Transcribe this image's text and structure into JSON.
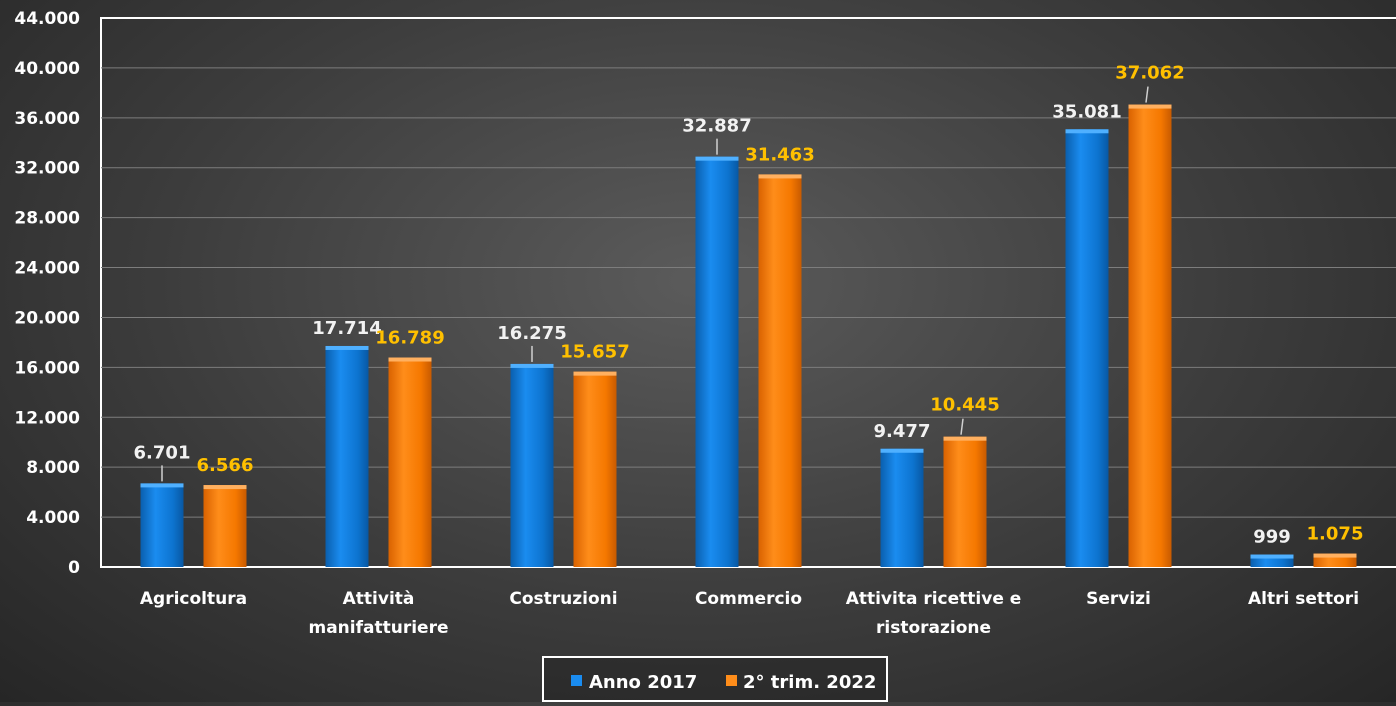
{
  "chart_data": {
    "type": "bar",
    "categories": [
      [
        "Agricoltura"
      ],
      [
        "Attività",
        "manifatturiere"
      ],
      [
        "Costruzioni"
      ],
      [
        "Commercio"
      ],
      [
        "Attivita ricettive e",
        "ristorazione"
      ],
      [
        "Servizi"
      ],
      [
        "Altri settori"
      ]
    ],
    "series": [
      {
        "name": "Anno 2017",
        "values": [
          6701,
          17714,
          16275,
          32887,
          9477,
          35081,
          999
        ],
        "labels": [
          "6.701",
          "17.714",
          "16.275",
          "32.887",
          "9.477",
          "35.081",
          "999"
        ]
      },
      {
        "name": "2° trim. 2022",
        "values": [
          6566,
          16789,
          15657,
          31463,
          10445,
          37062,
          1075
        ],
        "labels": [
          "6.566",
          "16.789",
          "15.657",
          "31.463",
          "10.445",
          "37.062",
          "1.075"
        ]
      }
    ],
    "ylim": [
      0,
      44000
    ],
    "yticks": [
      "0",
      "4.000",
      "8.000",
      "12.000",
      "16.000",
      "20.000",
      "24.000",
      "28.000",
      "32.000",
      "36.000",
      "40.000",
      "44.000"
    ],
    "grid": true,
    "legend_position": "bottom",
    "colors": {
      "series_a": "#0f7ad6",
      "series_b": "#ff7f00",
      "label_a": "#f2f2f2",
      "label_b": "#ffc000"
    }
  }
}
